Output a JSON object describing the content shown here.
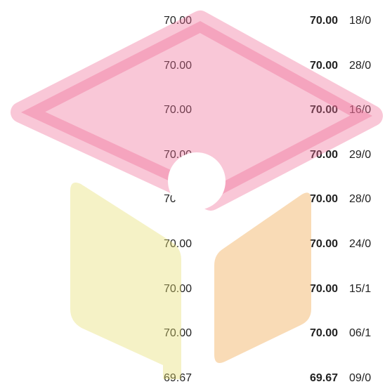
{
  "table": {
    "rows": [
      [
        "70.00",
        "70.00",
        "18/0"
      ],
      [
        "70.00",
        "70.00",
        "28/0"
      ],
      [
        "70.00",
        "70.00",
        "16/0"
      ],
      [
        "70.00",
        "70.00",
        "29/0"
      ],
      [
        "70.00",
        "70.00",
        "28/0"
      ],
      [
        "70.00",
        "70.00",
        "24/0"
      ],
      [
        "70.00",
        "70.00",
        "15/1"
      ],
      [
        "70.00",
        "70.00",
        "06/1"
      ],
      [
        "69.67",
        "69.67",
        "09/0"
      ]
    ]
  }
}
